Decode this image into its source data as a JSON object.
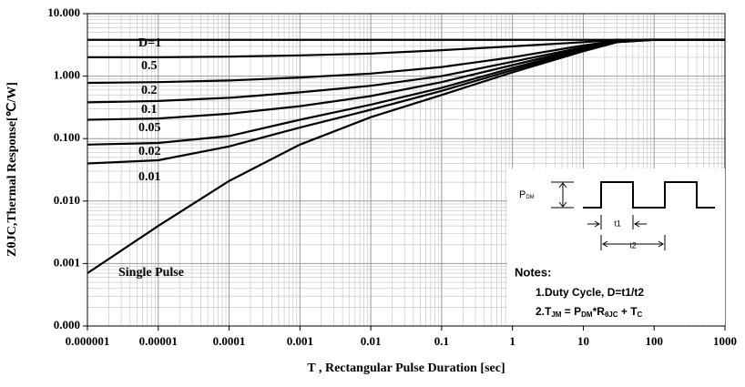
{
  "chart_data": {
    "type": "line",
    "xlabel": "T , Rectangular Pulse Duration [sec]",
    "ylabel": "ZθJC,Thermal Response[℃/W]",
    "log_x": true,
    "log_y": true,
    "grid": true,
    "x": [
      1e-06,
      1e-05,
      0.0001,
      0.001,
      0.01,
      0.1,
      1,
      10,
      30,
      100,
      1000
    ],
    "series": [
      {
        "name": "D=1",
        "color": "#000000",
        "values": [
          3.8,
          3.8,
          3.8,
          3.8,
          3.8,
          3.8,
          3.8,
          3.8,
          3.8,
          3.8,
          3.8
        ]
      },
      {
        "name": "0.5",
        "color": "#000000",
        "values": [
          2,
          2,
          2.05,
          2.15,
          2.3,
          2.6,
          3.0,
          3.5,
          3.8,
          3.8,
          3.8
        ]
      },
      {
        "name": "0.2",
        "color": "#000000",
        "values": [
          0.78,
          0.8,
          0.85,
          0.95,
          1.1,
          1.4,
          2.0,
          3.1,
          3.7,
          3.8,
          3.8
        ]
      },
      {
        "name": "0.1",
        "color": "#000000",
        "values": [
          0.38,
          0.4,
          0.45,
          0.55,
          0.7,
          1.0,
          1.7,
          2.9,
          3.7,
          3.8,
          3.8
        ]
      },
      {
        "name": "0.05",
        "color": "#000000",
        "values": [
          0.2,
          0.21,
          0.25,
          0.33,
          0.48,
          0.8,
          1.5,
          2.8,
          3.6,
          3.8,
          3.8
        ]
      },
      {
        "name": "0.02",
        "color": "#000000",
        "values": [
          0.08,
          0.085,
          0.11,
          0.2,
          0.35,
          0.65,
          1.35,
          2.7,
          3.6,
          3.8,
          3.8
        ]
      },
      {
        "name": "0.01",
        "color": "#000000",
        "values": [
          0.04,
          0.045,
          0.075,
          0.15,
          0.29,
          0.58,
          1.25,
          2.6,
          3.5,
          3.8,
          3.8
        ]
      },
      {
        "name": "Single Pulse",
        "color": "#000000",
        "values": [
          0.0007,
          0.004,
          0.021,
          0.08,
          0.22,
          0.5,
          1.15,
          2.5,
          3.5,
          3.8,
          3.8
        ]
      }
    ],
    "xlim": [
      1e-06,
      1000
    ],
    "xticks": [
      1e-06,
      1e-05,
      0.0001,
      0.001,
      0.01,
      0.1,
      1,
      10,
      100,
      1000
    ],
    "ylim": [
      0.0001,
      10
    ],
    "yticks": [
      {
        "value": 0.0001,
        "label": "0.000"
      },
      {
        "value": 0.001,
        "label": "0.001"
      },
      {
        "value": 0.01,
        "label": "0.010"
      },
      {
        "value": 0.1,
        "label": "0.100"
      },
      {
        "value": 1,
        "label": "1.000"
      },
      {
        "value": 10,
        "label": "10.000"
      }
    ],
    "inset": {
      "p": "P",
      "p_sub": "DM",
      "t1": "t1",
      "t2": "t2",
      "notes_title": "Notes:",
      "note1": "1.Duty  Cycle, D=t1/t2",
      "note2": [
        "2.T",
        "JM",
        " = P",
        "DM",
        "*R",
        "θJC",
        " + T",
        "C"
      ]
    }
  }
}
